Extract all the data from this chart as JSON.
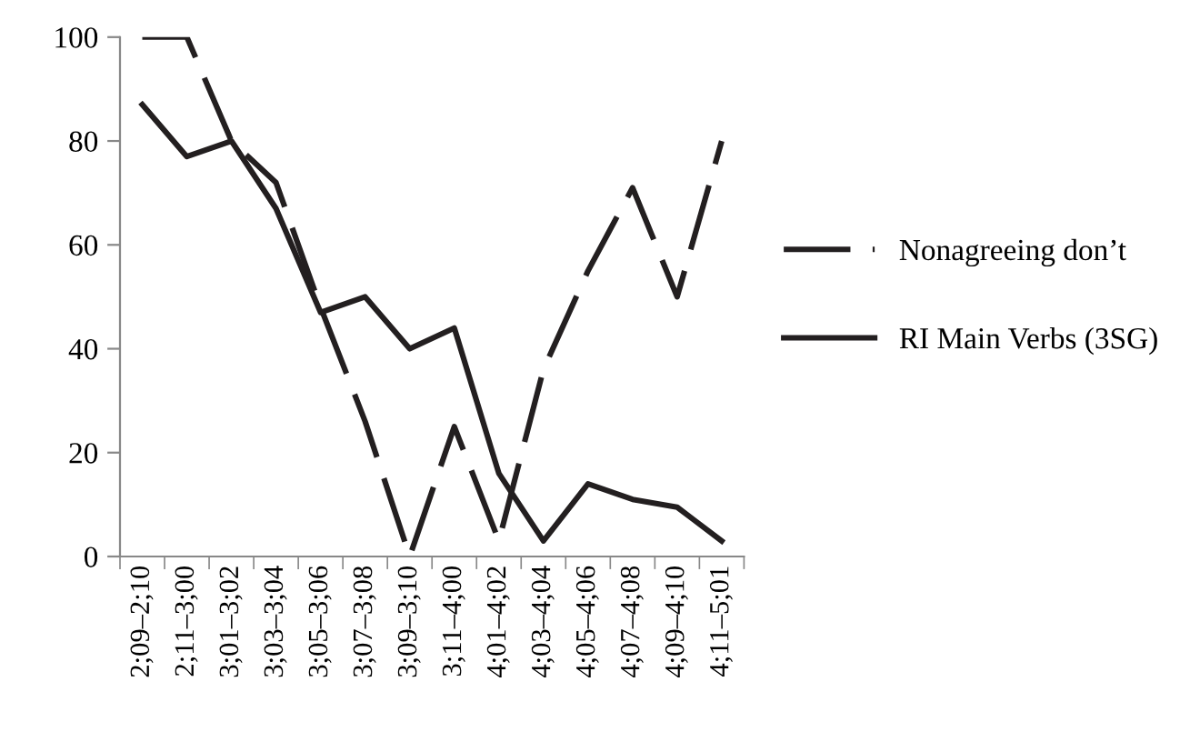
{
  "chart_data": {
    "type": "line",
    "categories": [
      "2;09–2;10",
      "2;11–3;00",
      "3;01–3;02",
      "3;03–3;04",
      "3;05–3;06",
      "3;07–3;08",
      "3;09–3;10",
      "3;11–4;00",
      "4;01–4;02",
      "4;03–4;04",
      "4;05–4;06",
      "4;07–4;08",
      "4;09–4;10",
      "4;11–5;01"
    ],
    "series": [
      {
        "name": "Nonagreeing don’t",
        "color": "#231f20",
        "line_style": "dashed",
        "values": [
          100,
          100,
          80,
          72,
          48,
          26,
          0,
          25,
          3,
          36,
          55,
          71,
          50,
          80
        ]
      },
      {
        "name": "RI Main Verbs (3SG)",
        "color": "#231f20",
        "line_style": "solid",
        "values": [
          87,
          77,
          80,
          67,
          47,
          50,
          40,
          44,
          16,
          3,
          14,
          11,
          9.5,
          3
        ]
      }
    ],
    "ylim": [
      0,
      100
    ],
    "yticks": [
      0,
      20,
      40,
      60,
      80,
      100
    ],
    "grid": false,
    "legend": "right",
    "marker": "none"
  }
}
